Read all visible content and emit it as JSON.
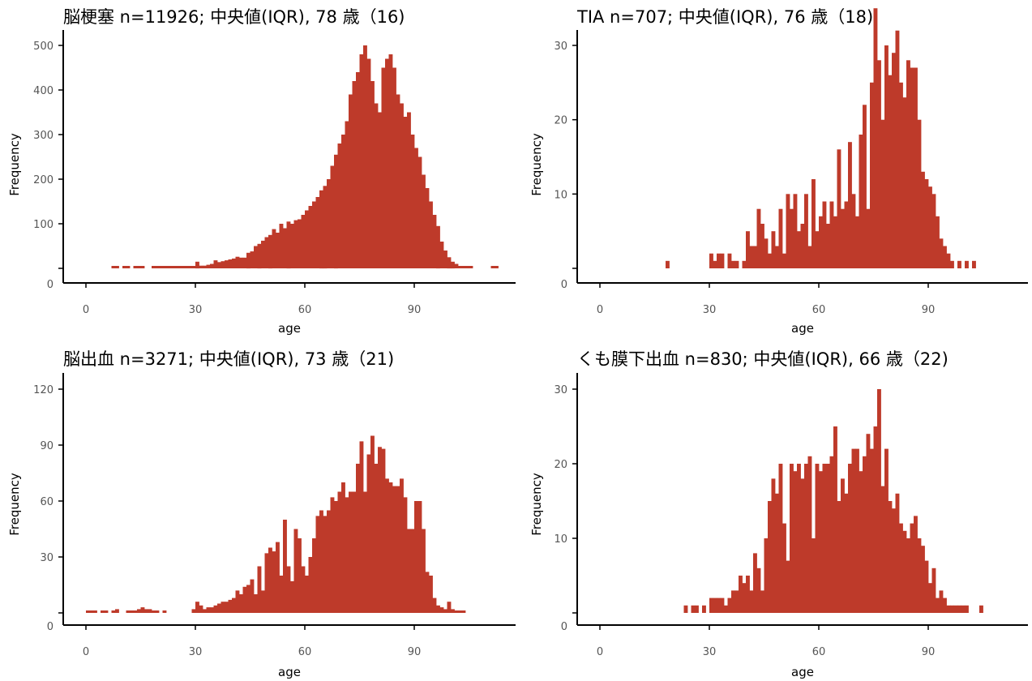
{
  "bar_color": "#BE3A2A",
  "axis_color": "#000000",
  "tick_label_color": "#555555",
  "chart_data": [
    {
      "type": "bar",
      "title": "脳梗塞  n=11926;  中央値(IQR), 78 歳（16)",
      "xlabel": "age",
      "ylabel": "Frequency",
      "xlim": [
        -5,
        117
      ],
      "ylim": [
        0,
        520
      ],
      "xticks": [
        0,
        30,
        60,
        90
      ],
      "yticks": [
        0,
        100,
        200,
        300,
        400,
        500
      ],
      "x": [
        7,
        8,
        10,
        11,
        13,
        14,
        15,
        18,
        19,
        20,
        21,
        22,
        23,
        24,
        25,
        26,
        27,
        28,
        29,
        30,
        31,
        32,
        33,
        34,
        35,
        36,
        37,
        38,
        39,
        40,
        41,
        42,
        43,
        44,
        45,
        46,
        47,
        48,
        49,
        50,
        51,
        52,
        53,
        54,
        55,
        56,
        57,
        58,
        59,
        60,
        61,
        62,
        63,
        64,
        65,
        66,
        67,
        68,
        69,
        70,
        71,
        72,
        73,
        74,
        75,
        76,
        77,
        78,
        79,
        80,
        81,
        82,
        83,
        84,
        85,
        86,
        87,
        88,
        89,
        90,
        91,
        92,
        93,
        94,
        95,
        96,
        97,
        98,
        99,
        100,
        101,
        102,
        103,
        104,
        105,
        111,
        112
      ],
      "values": [
        1,
        1,
        1,
        1,
        1,
        1,
        1,
        1,
        1,
        1,
        1,
        2,
        2,
        3,
        3,
        4,
        4,
        5,
        4,
        15,
        6,
        6,
        8,
        10,
        18,
        14,
        16,
        18,
        20,
        22,
        26,
        24,
        24,
        35,
        38,
        50,
        55,
        62,
        70,
        75,
        88,
        80,
        100,
        90,
        105,
        100,
        108,
        110,
        120,
        130,
        140,
        150,
        160,
        175,
        185,
        200,
        230,
        255,
        280,
        300,
        330,
        390,
        420,
        440,
        480,
        500,
        470,
        420,
        370,
        350,
        450,
        470,
        480,
        450,
        390,
        370,
        340,
        350,
        300,
        270,
        250,
        210,
        180,
        150,
        120,
        95,
        60,
        40,
        25,
        15,
        10,
        5,
        3,
        2,
        1,
        1,
        1
      ]
    },
    {
      "type": "bar",
      "title": "TIA n=707;  中央値(IQR), 76 歳（18)",
      "xlabel": "age",
      "ylabel": "Frequency",
      "xlim": [
        -5,
        117
      ],
      "ylim": [
        0,
        37
      ],
      "xticks": [
        0,
        30,
        60,
        90
      ],
      "yticks": [
        0,
        10,
        20,
        30
      ],
      "x": [
        18,
        30,
        31,
        32,
        33,
        35,
        36,
        37,
        39,
        40,
        41,
        42,
        43,
        44,
        45,
        46,
        47,
        48,
        49,
        50,
        51,
        52,
        53,
        54,
        55,
        56,
        57,
        58,
        59,
        60,
        61,
        62,
        63,
        64,
        65,
        66,
        67,
        68,
        69,
        70,
        71,
        72,
        73,
        74,
        75,
        76,
        77,
        78,
        79,
        80,
        81,
        82,
        83,
        84,
        85,
        86,
        87,
        88,
        89,
        90,
        91,
        92,
        93,
        94,
        95,
        96,
        98,
        100,
        102
      ],
      "values": [
        1,
        2,
        1,
        2,
        2,
        2,
        1,
        1,
        1,
        5,
        3,
        3,
        8,
        6,
        4,
        2,
        5,
        3,
        8,
        2,
        10,
        8,
        10,
        5,
        6,
        10,
        3,
        12,
        5,
        7,
        9,
        6,
        9,
        7,
        16,
        8,
        9,
        17,
        10,
        7,
        18,
        22,
        8,
        25,
        35,
        28,
        20,
        30,
        26,
        29,
        32,
        25,
        23,
        28,
        27,
        27,
        20,
        13,
        12,
        11,
        10,
        7,
        4,
        3,
        2,
        1,
        1,
        1,
        1
      ]
    },
    {
      "type": "bar",
      "title": "脳出血  n=3271;  中央値(IQR), 73 歳（21)",
      "xlabel": "age",
      "ylabel": "Frequency",
      "xlim": [
        -5,
        117
      ],
      "ylim": [
        0,
        127
      ],
      "xticks": [
        0,
        30,
        60,
        90
      ],
      "yticks": [
        0,
        30,
        60,
        90,
        120
      ],
      "x": [
        0,
        1,
        2,
        4,
        5,
        7,
        8,
        11,
        12,
        13,
        14,
        15,
        16,
        17,
        18,
        19,
        21,
        29,
        30,
        31,
        32,
        33,
        34,
        35,
        36,
        37,
        38,
        39,
        40,
        41,
        42,
        43,
        44,
        45,
        46,
        47,
        48,
        49,
        50,
        51,
        52,
        53,
        54,
        55,
        56,
        57,
        58,
        59,
        60,
        61,
        62,
        63,
        64,
        65,
        66,
        67,
        68,
        69,
        70,
        71,
        72,
        73,
        74,
        75,
        76,
        77,
        78,
        79,
        80,
        81,
        82,
        83,
        84,
        85,
        86,
        87,
        88,
        89,
        90,
        91,
        92,
        93,
        94,
        95,
        96,
        97,
        98,
        99,
        100,
        101,
        102,
        103
      ],
      "values": [
        1,
        1,
        1,
        1,
        1,
        1,
        2,
        1,
        1,
        1,
        2,
        3,
        2,
        2,
        1,
        1,
        1,
        2,
        6,
        4,
        2,
        3,
        3,
        4,
        5,
        6,
        6,
        7,
        8,
        12,
        10,
        14,
        15,
        18,
        10,
        25,
        12,
        32,
        35,
        33,
        38,
        20,
        50,
        25,
        17,
        45,
        40,
        25,
        20,
        30,
        40,
        52,
        55,
        52,
        55,
        62,
        60,
        65,
        70,
        62,
        65,
        65,
        80,
        92,
        65,
        85,
        95,
        80,
        89,
        88,
        72,
        70,
        68,
        68,
        72,
        62,
        45,
        45,
        60,
        60,
        45,
        22,
        20,
        8,
        4,
        3,
        2,
        6,
        2,
        1,
        1,
        1
      ]
    },
    {
      "type": "bar",
      "title": "くも膜下出血  n=830;  中央値(IQR), 66 歳（22)",
      "xlabel": "age",
      "ylabel": "Frequency",
      "xlim": [
        -5,
        117
      ],
      "ylim": [
        0,
        30.5
      ],
      "xticks": [
        0,
        30,
        60,
        90
      ],
      "yticks": [
        0,
        10,
        20,
        30
      ],
      "x": [
        23,
        25,
        26,
        28,
        30,
        31,
        32,
        33,
        34,
        35,
        36,
        37,
        38,
        39,
        40,
        41,
        42,
        43,
        44,
        45,
        46,
        47,
        48,
        49,
        50,
        51,
        52,
        53,
        54,
        55,
        56,
        57,
        58,
        59,
        60,
        61,
        62,
        63,
        64,
        65,
        66,
        67,
        68,
        69,
        70,
        71,
        72,
        73,
        74,
        75,
        76,
        77,
        78,
        79,
        80,
        81,
        82,
        83,
        84,
        85,
        86,
        87,
        88,
        89,
        90,
        91,
        92,
        93,
        94,
        95,
        96,
        97,
        98,
        99,
        100,
        104
      ],
      "values": [
        1,
        1,
        1,
        1,
        2,
        2,
        2,
        2,
        1,
        2,
        3,
        3,
        5,
        4,
        5,
        3,
        8,
        6,
        3,
        10,
        15,
        18,
        16,
        20,
        12,
        7,
        20,
        19,
        20,
        18,
        20,
        21,
        10,
        20,
        19,
        20,
        20,
        21,
        25,
        15,
        18,
        16,
        20,
        22,
        22,
        19,
        21,
        24,
        22,
        25,
        30,
        17,
        22,
        15,
        14,
        16,
        12,
        11,
        10,
        12,
        13,
        10,
        9,
        7,
        4,
        6,
        2,
        3,
        2,
        1,
        1,
        1,
        1,
        1,
        1,
        1
      ]
    }
  ]
}
